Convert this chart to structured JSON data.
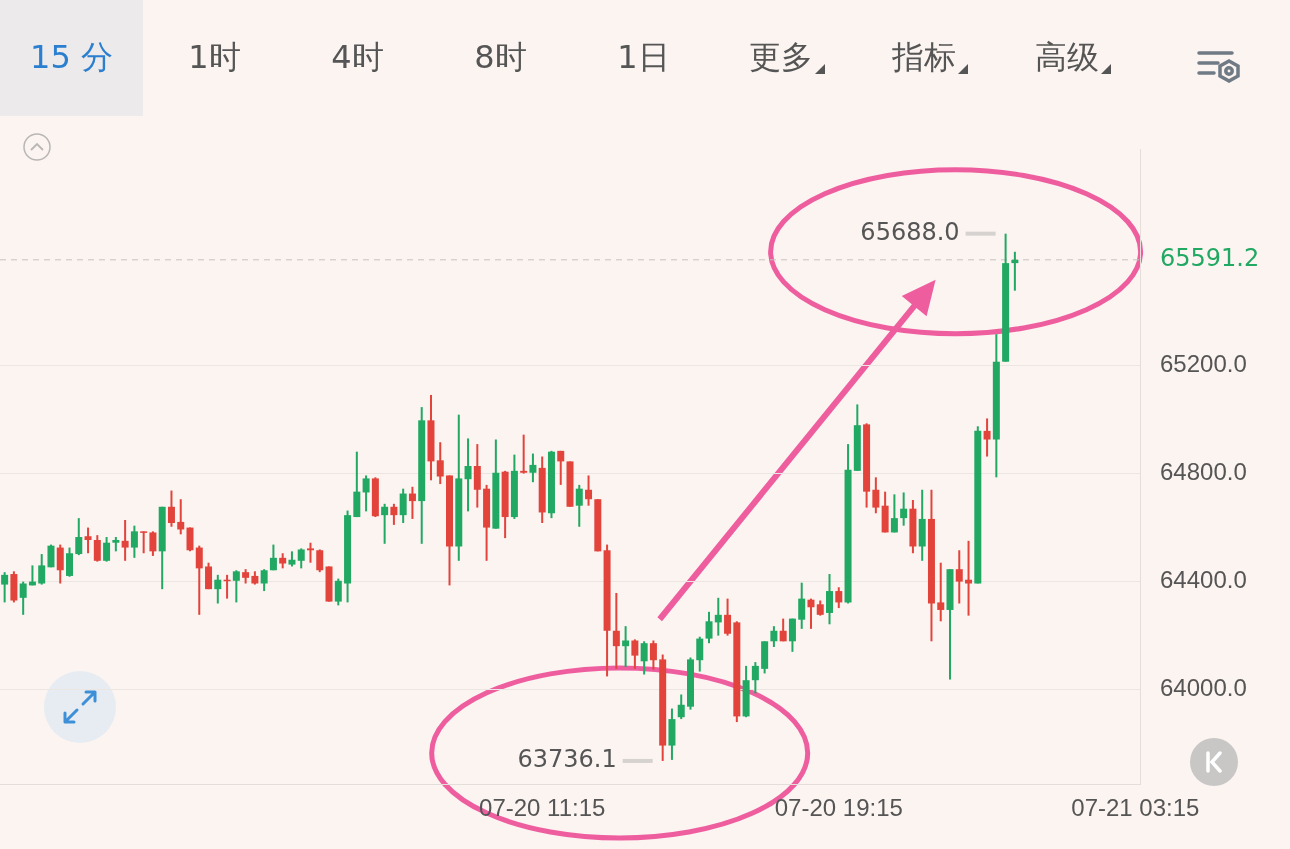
{
  "chart_data": {
    "type": "candlestick",
    "categories": [
      null,
      null,
      null,
      null,
      null,
      null,
      null,
      null,
      null,
      null,
      null,
      null,
      null,
      null,
      null,
      null,
      null,
      null,
      null,
      null,
      null,
      null,
      null,
      null,
      null,
      null,
      null,
      null,
      null,
      null,
      null,
      null,
      null,
      null,
      null,
      null,
      null,
      null,
      null,
      null,
      null,
      null,
      null,
      null,
      null,
      null,
      null,
      null,
      null,
      null,
      null,
      null,
      null,
      null,
      null,
      null,
      null,
      null,
      "07-20 11:15",
      null,
      null,
      null,
      null,
      null,
      null,
      null,
      null,
      null,
      null,
      null,
      null,
      null,
      null,
      null,
      null,
      null,
      null,
      null,
      null,
      null,
      null,
      null,
      null,
      null,
      null,
      null,
      null,
      null,
      null,
      null,
      "07-20 19:15",
      null,
      null,
      null,
      null,
      null,
      null,
      null,
      null,
      null,
      null,
      null,
      null,
      null,
      null,
      null,
      null,
      null,
      null,
      null,
      null,
      null,
      null,
      null,
      null,
      null,
      null,
      null,
      null,
      null,
      null,
      null,
      "07-21 03:15"
    ],
    "ohlc": [
      [
        64389,
        64435,
        64323,
        64425
      ],
      [
        64428,
        64438,
        64323,
        64330
      ],
      [
        64340,
        64400,
        64277,
        64393
      ],
      [
        64386,
        64460,
        64386,
        64400
      ],
      [
        64393,
        64502,
        64389,
        64460
      ],
      [
        64453,
        64537,
        64453,
        64533
      ],
      [
        64526,
        64537,
        64393,
        64442
      ],
      [
        64421,
        64526,
        64418,
        64505
      ],
      [
        64502,
        64635,
        64498,
        64565
      ],
      [
        64568,
        64600,
        64505,
        64554
      ],
      [
        64554,
        64572,
        64474,
        64477
      ],
      [
        64477,
        64565,
        64474,
        64544
      ],
      [
        64544,
        64565,
        64512,
        64554
      ],
      [
        64551,
        64628,
        64477,
        64526
      ],
      [
        64526,
        64607,
        64488,
        64586
      ],
      [
        64586,
        64586,
        64505,
        64582
      ],
      [
        64582,
        64586,
        64495,
        64512
      ],
      [
        64512,
        64677,
        64372,
        64677
      ],
      [
        64677,
        64737,
        64603,
        64617
      ],
      [
        64621,
        64705,
        64575,
        64593
      ],
      [
        64600,
        64600,
        64512,
        64516
      ],
      [
        64526,
        64533,
        64277,
        64449
      ],
      [
        64456,
        64470,
        64372,
        64372
      ],
      [
        64372,
        64425,
        64319,
        64407
      ],
      [
        64407,
        64425,
        64337,
        64403
      ],
      [
        64403,
        64442,
        64323,
        64438
      ],
      [
        64435,
        64446,
        64393,
        64414
      ],
      [
        64421,
        64438,
        64389,
        64393
      ],
      [
        64393,
        64446,
        64365,
        64442
      ],
      [
        64442,
        64537,
        64442,
        64488
      ],
      [
        64488,
        64505,
        64449,
        64467
      ],
      [
        64463,
        64512,
        64456,
        64481
      ],
      [
        64477,
        64523,
        64449,
        64519
      ],
      [
        64523,
        64544,
        64470,
        64516
      ],
      [
        64516,
        64519,
        64435,
        64442
      ],
      [
        64456,
        64456,
        64326,
        64326
      ],
      [
        64326,
        64411,
        64312,
        64403
      ],
      [
        64393,
        64663,
        64323,
        64646
      ],
      [
        64639,
        64881,
        64639,
        64733
      ],
      [
        64730,
        64793,
        64660,
        64782
      ],
      [
        64782,
        64786,
        64639,
        64642
      ],
      [
        64646,
        64688,
        64540,
        64677
      ],
      [
        64677,
        64688,
        64610,
        64646
      ],
      [
        64646,
        64744,
        64617,
        64726
      ],
      [
        64726,
        64751,
        64632,
        64698
      ],
      [
        64698,
        65046,
        64540,
        64997
      ],
      [
        64997,
        65091,
        64775,
        64845
      ],
      [
        64849,
        64916,
        64761,
        64789
      ],
      [
        64793,
        64793,
        64386,
        64530
      ],
      [
        64530,
        65018,
        64477,
        64782
      ],
      [
        64779,
        64930,
        64660,
        64828
      ],
      [
        64828,
        64909,
        64674,
        64740
      ],
      [
        64744,
        64758,
        64477,
        64600
      ],
      [
        64596,
        64926,
        64596,
        64803
      ],
      [
        64807,
        64810,
        64561,
        64639
      ],
      [
        64639,
        64870,
        64632,
        64810
      ],
      [
        64810,
        64944,
        64800,
        64803
      ],
      [
        64803,
        64874,
        64768,
        64832
      ],
      [
        64821,
        64863,
        64617,
        64656
      ],
      [
        64653,
        64884,
        64635,
        64881
      ],
      [
        64884,
        64884,
        64758,
        64845
      ],
      [
        64845,
        64845,
        64677,
        64677
      ],
      [
        64681,
        64758,
        64603,
        64744
      ],
      [
        64740,
        64793,
        64681,
        64705
      ],
      [
        64705,
        64705,
        64512,
        64512
      ],
      [
        64516,
        64537,
        64049,
        64218
      ],
      [
        64218,
        64358,
        64077,
        64161
      ],
      [
        64161,
        64235,
        64084,
        64182
      ],
      [
        64182,
        64186,
        64077,
        64126
      ],
      [
        64105,
        64179,
        64056,
        64172
      ],
      [
        64172,
        64182,
        64074,
        64109
      ],
      [
        64112,
        64130,
        63736.1,
        63793
      ],
      [
        63793,
        63930,
        63740,
        63891
      ],
      [
        63898,
        63982,
        63891,
        63944
      ],
      [
        63937,
        64119,
        63926,
        64112
      ],
      [
        64109,
        64196,
        64067,
        64189
      ],
      [
        64189,
        64288,
        64172,
        64253
      ],
      [
        64249,
        64340,
        64200,
        64277
      ],
      [
        64277,
        64337,
        64200,
        64207
      ],
      [
        64249,
        64253,
        63880,
        63901
      ],
      [
        63901,
        64088,
        63898,
        64035
      ],
      [
        64035,
        64102,
        63986,
        64088
      ],
      [
        64077,
        64179,
        64060,
        64179
      ],
      [
        64179,
        64235,
        64158,
        64218
      ],
      [
        64218,
        64263,
        64179,
        64179
      ],
      [
        64179,
        64263,
        64140,
        64263
      ],
      [
        64259,
        64396,
        64225,
        64337
      ],
      [
        64333,
        64337,
        64225,
        64305
      ],
      [
        64316,
        64330,
        64274,
        64277
      ],
      [
        64284,
        64428,
        64242,
        64365
      ],
      [
        64365,
        64379,
        64302,
        64323
      ],
      [
        64323,
        64909,
        64319,
        64814
      ],
      [
        64810,
        65056,
        64810,
        64979
      ],
      [
        64982,
        64986,
        64674,
        64733
      ],
      [
        64740,
        64786,
        64653,
        64674
      ],
      [
        64681,
        64733,
        64582,
        64582
      ],
      [
        64582,
        64723,
        64582,
        64635
      ],
      [
        64635,
        64730,
        64607,
        64670
      ],
      [
        64670,
        64702,
        64505,
        64530
      ],
      [
        64530,
        64740,
        64477,
        64632
      ],
      [
        64632,
        64740,
        64179,
        64319
      ],
      [
        64323,
        64470,
        64253,
        64295
      ],
      [
        64295,
        64446,
        64038,
        64446
      ],
      [
        64446,
        64516,
        64319,
        64400
      ],
      [
        64407,
        64551,
        64274,
        64393
      ],
      [
        64393,
        64975,
        64393,
        64958
      ],
      [
        64958,
        65004,
        64863,
        64926
      ],
      [
        64926,
        65316,
        64786,
        65214
      ],
      [
        65214,
        65688.0,
        65214,
        65579
      ],
      [
        65579,
        65621,
        65477,
        65591.2
      ],
      null,
      null,
      null,
      null,
      null,
      null,
      null,
      null,
      null,
      null,
      null,
      null,
      null
    ],
    "ylim": [
      63650,
      66000
    ],
    "yticks": [
      {
        "value": 64000,
        "label": "64000.0"
      },
      {
        "value": 64400,
        "label": "64400.0"
      },
      {
        "value": 64800,
        "label": "64800.0"
      },
      {
        "value": 65200,
        "label": "65200.0"
      }
    ],
    "grid": "y",
    "ref_lines": [
      {
        "axis": "y",
        "value": 65591.2,
        "label": "65591.2",
        "color": "#c9c1bd",
        "line_style": "dashed"
      }
    ],
    "annotations": [
      "15 分",
      "1时",
      "4时",
      "8时",
      "1日",
      "更多",
      "指标",
      "高级",
      "65688.0",
      "63736.1"
    ]
  }
}
